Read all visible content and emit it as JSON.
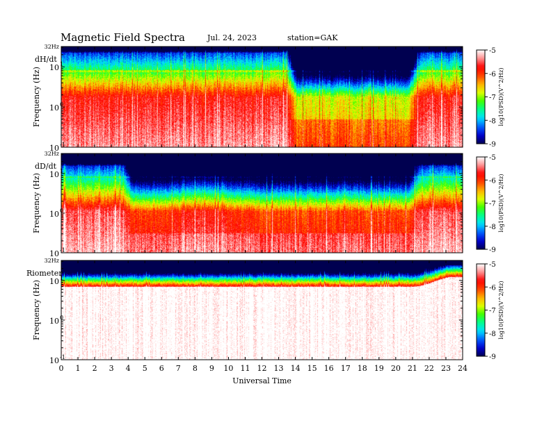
{
  "header": {
    "title": "Magnetic  Field  Spectra",
    "date": "Jul.  24, 2023",
    "station": "station=GAK"
  },
  "colors": {
    "scale": [
      "#000050",
      "#0000d0",
      "#0060ff",
      "#00e0ff",
      "#00ff90",
      "#40ff00",
      "#e0ff00",
      "#ffb000",
      "#ff4000",
      "#ff0000",
      "#ff9090",
      "#ffffff"
    ]
  },
  "chart_data": [
    {
      "type": "heatmap",
      "panel_label": "dH/dt",
      "ylabel": "Frequency  (Hz)",
      "xlabel": "",
      "yscale": "log",
      "ylim": [
        0.1,
        32
      ],
      "y_ticks": [
        "32Hz",
        "10",
        "10",
        "10"
      ],
      "y_tick_exps": [
        "",
        "1",
        "0",
        "-1"
      ],
      "x_range": [
        0,
        24
      ],
      "colorbar": {
        "label": "log10(PSD)(V^2/Hz)",
        "ticks": [
          "-5",
          "-6",
          "-7",
          "-8",
          "-9"
        ],
        "range": [
          -9,
          -5
        ]
      }
    },
    {
      "type": "heatmap",
      "panel_label": "dD/dt",
      "ylabel": "Frequency  (Hz)",
      "xlabel": "",
      "yscale": "log",
      "ylim": [
        0.1,
        32
      ],
      "y_ticks": [
        "32Hz",
        "10",
        "10",
        "10"
      ],
      "y_tick_exps": [
        "",
        "1",
        "0",
        "-1"
      ],
      "x_range": [
        0,
        24
      ],
      "colorbar": {
        "label": "log10(PSD)(V^2/Hz)",
        "ticks": [
          "-5",
          "-6",
          "-7",
          "-8",
          "-9"
        ],
        "range": [
          -9,
          -5
        ]
      }
    },
    {
      "type": "heatmap",
      "panel_label": "Riometer",
      "ylabel": "Frequency  (Hz)",
      "xlabel": "Universal Time",
      "yscale": "log",
      "ylim": [
        0.1,
        32
      ],
      "y_ticks": [
        "32Hz",
        "10",
        "10",
        "10"
      ],
      "y_tick_exps": [
        "",
        "1",
        "0",
        "-1"
      ],
      "x_range": [
        0,
        24
      ],
      "x_ticks": [
        "0",
        "1",
        "2",
        "3",
        "4",
        "5",
        "6",
        "7",
        "8",
        "9",
        "10",
        "11",
        "12",
        "13",
        "14",
        "15",
        "16",
        "17",
        "18",
        "19",
        "20",
        "21",
        "22",
        "23",
        "24"
      ],
      "colorbar": {
        "label": "log10(PSD)(V^2/Hz)",
        "ticks": [
          "-5",
          "-6",
          "-7",
          "-8",
          "-9"
        ],
        "range": [
          -9,
          -5
        ]
      }
    }
  ]
}
